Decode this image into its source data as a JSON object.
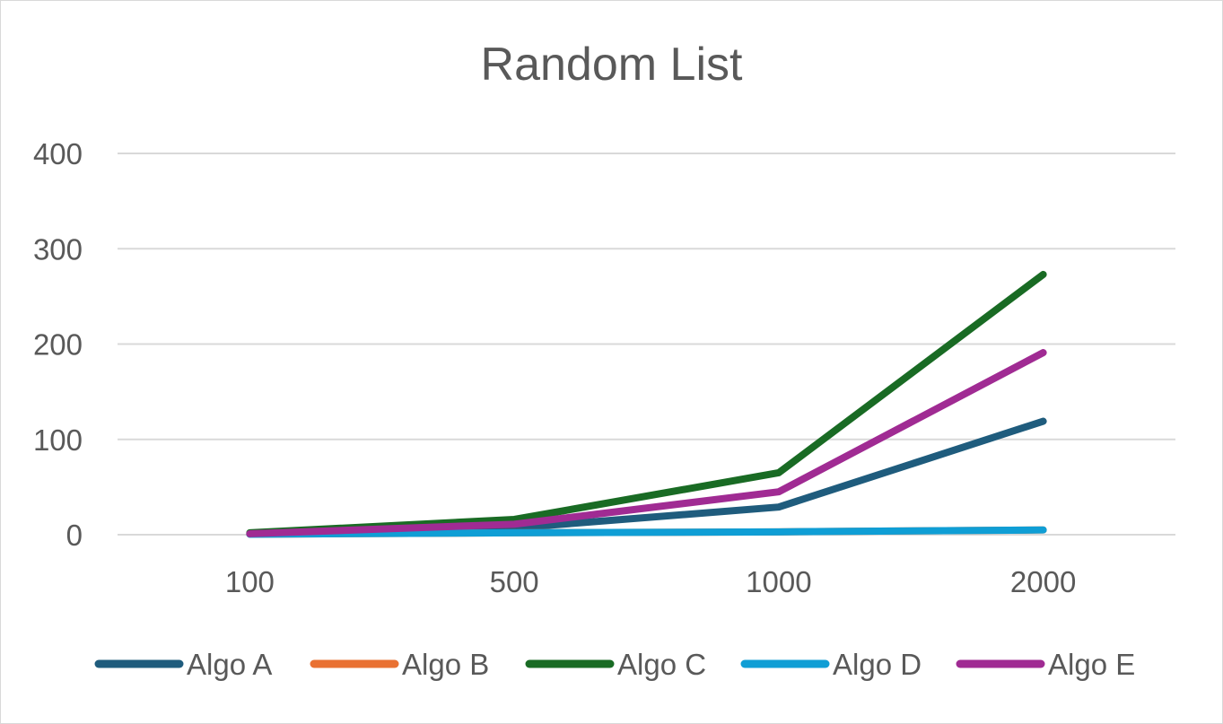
{
  "chart_data": {
    "type": "line",
    "title": "Random List",
    "xlabel": "",
    "ylabel": "",
    "categories": [
      "100",
      "500",
      "1000",
      "2000"
    ],
    "ylim": [
      0,
      400
    ],
    "yticks": [
      0,
      100,
      200,
      300,
      400
    ],
    "grid": true,
    "legend_position": "bottom",
    "series": [
      {
        "name": "Algo A",
        "color": "#1f5c7d",
        "values": [
          1,
          7,
          29,
          119
        ]
      },
      {
        "name": "Algo B",
        "color": "#e97132",
        "values": [
          0.5,
          2,
          3,
          5
        ]
      },
      {
        "name": "Algo C",
        "color": "#196b24",
        "values": [
          2,
          16,
          65,
          273
        ]
      },
      {
        "name": "Algo D",
        "color": "#0f9ed5",
        "values": [
          0.5,
          2,
          3,
          5
        ]
      },
      {
        "name": "Algo E",
        "color": "#a02b93",
        "values": [
          1,
          11,
          45,
          191
        ]
      }
    ]
  }
}
